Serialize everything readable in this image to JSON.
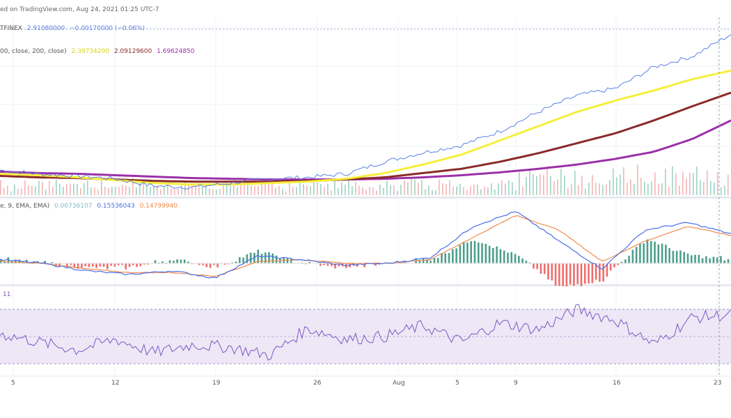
{
  "header": {
    "published": "ed on TradingView.com, Aug 24, 2021 01:25 UTC-7",
    "symbol_suffix": "TFINEX",
    "price": "2.91080000",
    "change": "−0.00170000 (−0.06%)"
  },
  "ma_legend": {
    "label": "00, close, 200, close)",
    "v1": "2.39734200",
    "v2": "2.09129600",
    "v3": "1.69624850"
  },
  "macd_legend": {
    "label": "e, 9, EMA, EMA)",
    "hist": "0.00736107",
    "macd": "0.15536043",
    "signal": "0.14799940"
  },
  "rsi_legend": {
    "value": "11"
  },
  "x_axis": {
    "ticks": [
      "5",
      "12",
      "19",
      "26",
      "Aug",
      "5",
      "9",
      "16",
      "23"
    ]
  },
  "colors": {
    "price": "#5b7fe6",
    "ma_short": "#f5ef3b",
    "ma_mid": "#8b2a2a",
    "ma_long": "#9b2fa8",
    "macd": "#4a6fe8",
    "signal": "#f08a4b",
    "hist_up": "#4c9f8a",
    "hist_down": "#f06b6b",
    "rsi": "#7e57c2",
    "rsi_band": "#ede7f6"
  },
  "chart_data": {
    "type": "line",
    "panels": [
      "price",
      "macd",
      "rsi"
    ],
    "series": [
      {
        "values": [
          1.0,
          0.95,
          0.92,
          0.88,
          0.78,
          0.76,
          0.82,
          0.88,
          0.9,
          0.95,
          1.12,
          1.25,
          1.35,
          1.55,
          1.82,
          2.05,
          2.15,
          2.45,
          2.6,
          2.91
        ]
      },
      {
        "values": [
          0.95,
          0.93,
          0.9,
          0.86,
          0.82,
          0.8,
          0.8,
          0.82,
          0.84,
          0.88,
          0.96,
          1.08,
          1.22,
          1.42,
          1.62,
          1.82,
          1.98,
          2.12,
          2.28,
          2.4
        ]
      },
      {
        "values": [
          0.92,
          0.9,
          0.89,
          0.87,
          0.85,
          0.84,
          0.84,
          0.84,
          0.85,
          0.87,
          0.9,
          0.96,
          1.02,
          1.12,
          1.24,
          1.38,
          1.52,
          1.7,
          1.9,
          2.09
        ]
      },
      {
        "values": [
          0.98,
          0.96,
          0.95,
          0.93,
          0.91,
          0.89,
          0.88,
          0.87,
          0.87,
          0.87,
          0.88,
          0.9,
          0.93,
          0.97,
          1.02,
          1.08,
          1.16,
          1.26,
          1.44,
          1.7
        ]
      }
    ],
    "macd": {
      "macd": [
        0.02,
        0.0,
        -0.04,
        -0.06,
        -0.04,
        -0.08,
        0.04,
        0.02,
        -0.01,
        0.0,
        0.03,
        0.2,
        0.28,
        0.12,
        -0.03,
        0.18,
        0.22,
        0.16
      ],
      "signal": [
        0.01,
        0.0,
        -0.03,
        -0.05,
        -0.05,
        -0.07,
        0.01,
        0.02,
        0.0,
        0.0,
        0.02,
        0.14,
        0.26,
        0.18,
        0.01,
        0.12,
        0.2,
        0.15
      ]
    },
    "rsi": {
      "values": [
        52,
        46,
        40,
        48,
        38,
        44,
        42,
        36,
        56,
        48,
        50,
        58,
        46,
        60,
        55,
        70,
        62,
        44,
        64,
        66
      ],
      "bands": [
        70,
        50,
        30
      ]
    }
  }
}
